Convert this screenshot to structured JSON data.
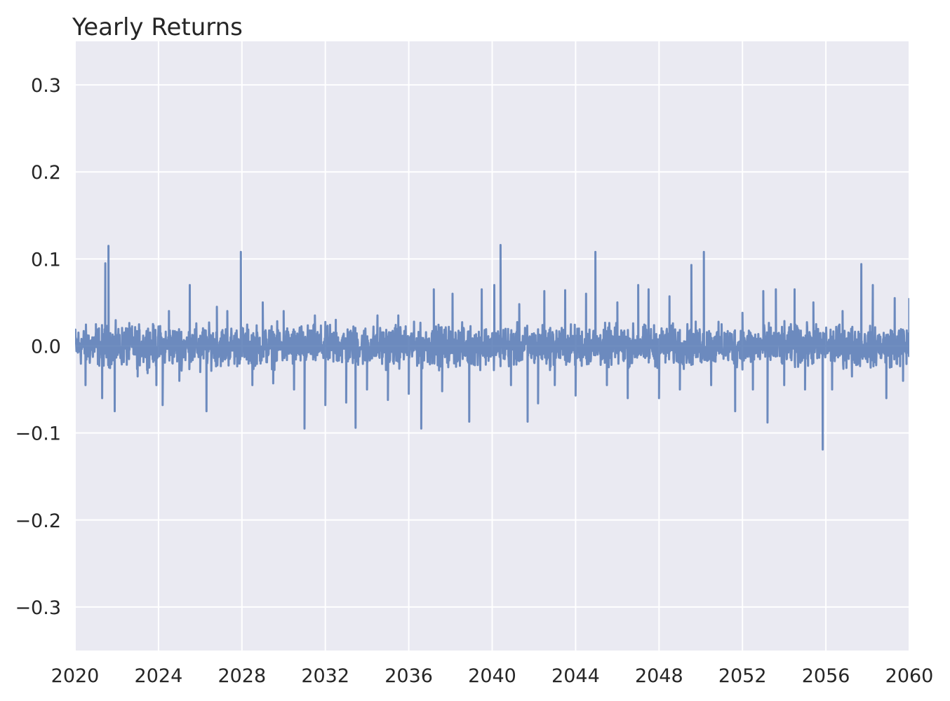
{
  "chart_data": {
    "type": "line",
    "title": "Yearly Returns",
    "xlabel": "",
    "ylabel": "",
    "xlim": [
      2020,
      2060
    ],
    "ylim": [
      -0.35,
      0.35
    ],
    "x_ticks": [
      2020,
      2024,
      2028,
      2032,
      2036,
      2040,
      2044,
      2048,
      2052,
      2056,
      2060
    ],
    "x_tick_labels": [
      "2020",
      "2024",
      "2028",
      "2032",
      "2036",
      "2040",
      "2044",
      "2048",
      "2052",
      "2056",
      "2060"
    ],
    "y_ticks": [
      -0.3,
      -0.2,
      -0.1,
      0.0,
      0.1,
      0.2,
      0.3
    ],
    "y_tick_labels": [
      "−0.3",
      "−0.2",
      "−0.1",
      "0.0",
      "0.1",
      "0.2",
      "0.3"
    ],
    "grid": true,
    "legend": "none",
    "background_color": "#eaeaf2",
    "grid_color": "#ffffff",
    "series": [
      {
        "color": "#4c72b0",
        "x": [
          2020.0,
          2020.5,
          2021.0,
          2021.3,
          2021.45,
          2021.6,
          2021.9,
          2022.5,
          2023.0,
          2023.5,
          2023.9,
          2024.2,
          2024.5,
          2025.0,
          2025.5,
          2026.0,
          2026.3,
          2026.8,
          2027.3,
          2027.95,
          2028.5,
          2029.0,
          2029.5,
          2030.0,
          2030.5,
          2031.0,
          2031.5,
          2032.0,
          2032.5,
          2033.0,
          2033.45,
          2034.0,
          2034.5,
          2035.0,
          2035.5,
          2036.0,
          2036.6,
          2037.2,
          2037.6,
          2038.1,
          2038.9,
          2039.5,
          2040.1,
          2040.4,
          2040.9,
          2041.3,
          2041.7,
          2042.2,
          2042.5,
          2043.0,
          2043.5,
          2044.0,
          2044.5,
          2044.95,
          2045.5,
          2046.0,
          2046.5,
          2047.0,
          2047.5,
          2048.0,
          2048.5,
          2049.0,
          2049.55,
          2050.15,
          2050.5,
          2051.0,
          2051.65,
          2052.0,
          2052.5,
          2053.0,
          2053.2,
          2053.6,
          2054.0,
          2054.5,
          2055.0,
          2055.4,
          2055.85,
          2056.3,
          2056.8,
          2057.25,
          2057.7,
          2058.25,
          2058.9,
          2059.3,
          2059.7,
          2060.0
        ],
        "y": [
          0.015,
          -0.045,
          0.025,
          -0.06,
          0.095,
          0.115,
          -0.075,
          0.02,
          -0.035,
          0.02,
          -0.045,
          -0.068,
          0.04,
          -0.04,
          0.07,
          -0.03,
          -0.075,
          0.045,
          0.04,
          0.108,
          -0.045,
          0.05,
          -0.043,
          0.04,
          -0.05,
          -0.095,
          0.035,
          -0.068,
          0.03,
          -0.065,
          -0.094,
          -0.05,
          0.035,
          -0.062,
          0.035,
          -0.055,
          -0.095,
          0.065,
          -0.052,
          0.06,
          -0.087,
          0.065,
          0.07,
          0.116,
          -0.045,
          0.048,
          -0.087,
          -0.066,
          0.063,
          -0.045,
          0.064,
          -0.057,
          0.06,
          0.108,
          -0.045,
          0.05,
          -0.06,
          0.07,
          0.065,
          -0.06,
          0.057,
          -0.05,
          0.093,
          0.108,
          -0.045,
          0.025,
          -0.075,
          0.038,
          -0.05,
          0.063,
          -0.088,
          0.065,
          -0.045,
          0.065,
          -0.05,
          0.05,
          -0.119,
          -0.05,
          0.04,
          -0.035,
          0.094,
          0.07,
          -0.06,
          0.055,
          -0.04,
          0.055
        ]
      }
    ]
  }
}
